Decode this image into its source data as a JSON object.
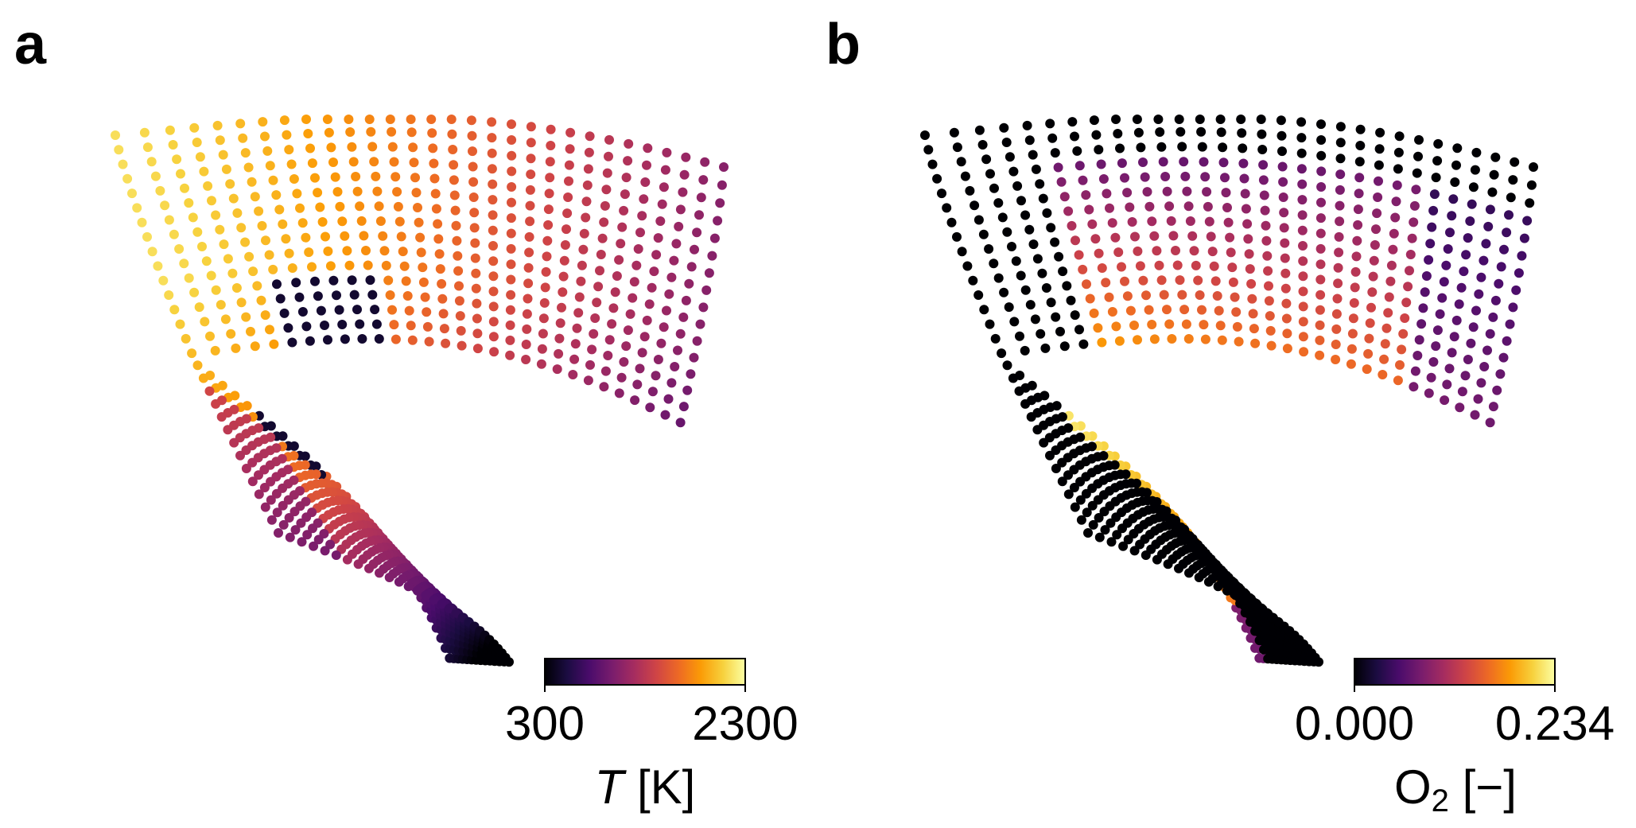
{
  "chart_data": [
    {
      "type": "scatter",
      "panel_label": "a",
      "colormap": "inferno",
      "axes_visible": false,
      "colorbar": {
        "min": 300,
        "max": 2300,
        "min_label": "300",
        "max_label": "2300",
        "label_main": "T",
        "label_rest": " [K]",
        "label_sub": ""
      }
    },
    {
      "type": "scatter",
      "panel_label": "b",
      "colormap": "inferno",
      "axes_visible": false,
      "colorbar": {
        "min": 0.0,
        "max": 0.234,
        "min_label": "0.000",
        "max_label": "0.234",
        "label_main": "O",
        "label_sub": "2",
        "label_rest": " [−]"
      }
    }
  ],
  "colors": {
    "inferno": [
      "#000004",
      "#1b0c41",
      "#4a0c6b",
      "#781c6d",
      "#a52c60",
      "#cf4446",
      "#ed6925",
      "#fb9b06",
      "#f7d13d",
      "#fcffa4"
    ]
  }
}
